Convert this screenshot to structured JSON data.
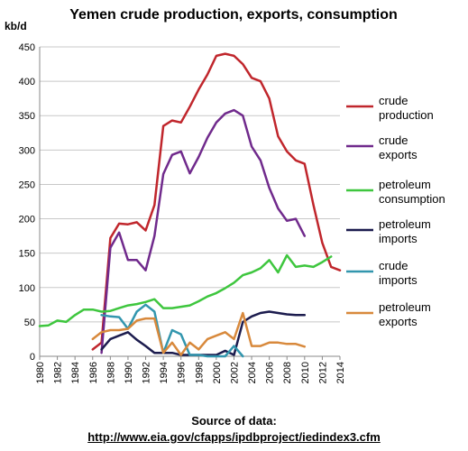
{
  "chart_data": {
    "type": "line",
    "title": "Yemen crude production,  exports, consumption",
    "ylabel": "kb/d",
    "xlabel": "",
    "ylim": [
      0,
      450
    ],
    "y_ticks": [
      0,
      50,
      100,
      150,
      200,
      250,
      300,
      350,
      400,
      450
    ],
    "xlim": [
      1980,
      2014
    ],
    "x_ticks": [
      1980,
      1982,
      1984,
      1986,
      1988,
      1990,
      1992,
      1994,
      1996,
      1998,
      2000,
      2002,
      2004,
      2006,
      2008,
      2010,
      2012,
      2014
    ],
    "grid": "horizontal",
    "legend_position": "right",
    "series": [
      {
        "name": "crude production",
        "color": "#c0262c",
        "x": [
          1986,
          1987,
          1988,
          1989,
          1990,
          1991,
          1992,
          1993,
          1994,
          1995,
          1996,
          1997,
          1998,
          1999,
          2000,
          2001,
          2002,
          2003,
          2004,
          2005,
          2006,
          2007,
          2008,
          2009,
          2010,
          2011,
          2012,
          2013,
          2014
        ],
        "values": [
          10,
          20,
          172,
          193,
          192,
          195,
          183,
          220,
          335,
          343,
          340,
          363,
          388,
          410,
          437,
          440,
          437,
          425,
          405,
          400,
          375,
          320,
          298,
          285,
          280,
          220,
          165,
          130,
          125
        ]
      },
      {
        "name": "crude exports",
        "color": "#702a8c",
        "x": [
          1987,
          1988,
          1989,
          1990,
          1991,
          1992,
          1993,
          1994,
          1995,
          1996,
          1997,
          1998,
          1999,
          2000,
          2001,
          2002,
          2003,
          2004,
          2005,
          2006,
          2007,
          2008,
          2009,
          2010
        ],
        "values": [
          5,
          158,
          180,
          140,
          140,
          125,
          175,
          265,
          293,
          298,
          266,
          290,
          318,
          340,
          353,
          358,
          350,
          305,
          285,
          245,
          215,
          197,
          200,
          175
        ]
      },
      {
        "name": "petroleum consumption",
        "color": "#3ec63e",
        "x": [
          1980,
          1981,
          1982,
          1983,
          1984,
          1985,
          1986,
          1987,
          1988,
          1989,
          1990,
          1991,
          1992,
          1993,
          1994,
          1995,
          1996,
          1997,
          1998,
          1999,
          2000,
          2001,
          2002,
          2003,
          2004,
          2005,
          2006,
          2007,
          2008,
          2009,
          2010,
          2011,
          2012,
          2013
        ],
        "values": [
          44,
          45,
          52,
          50,
          60,
          68,
          68,
          65,
          66,
          70,
          74,
          76,
          79,
          83,
          70,
          70,
          72,
          74,
          80,
          87,
          92,
          99,
          107,
          118,
          122,
          128,
          140,
          122,
          147,
          130,
          132,
          130,
          137,
          145
        ]
      },
      {
        "name": "petroleum imports",
        "color": "#1c1c4e",
        "x": [
          1987,
          1988,
          1989,
          1990,
          1991,
          1992,
          1993,
          1994,
          1995,
          1996,
          1997,
          1998,
          1999,
          2000,
          2001,
          2002,
          2003,
          2004,
          2005,
          2006,
          2007,
          2008,
          2009,
          2010
        ],
        "values": [
          10,
          25,
          30,
          35,
          24,
          15,
          5,
          5,
          5,
          2,
          2,
          2,
          2,
          2,
          8,
          2,
          50,
          58,
          63,
          65,
          63,
          61,
          60,
          60
        ]
      },
      {
        "name": "crude imports",
        "color": "#3296ae",
        "x": [
          1987,
          1988,
          1989,
          1990,
          1991,
          1992,
          1993,
          1994,
          1995,
          1996,
          1997,
          1998,
          1999,
          2000,
          2001,
          2002,
          2003
        ],
        "values": [
          60,
          58,
          57,
          40,
          65,
          75,
          65,
          5,
          38,
          32,
          2,
          2,
          0,
          0,
          0,
          15,
          0
        ]
      },
      {
        "name": "petroleum exports",
        "color": "#d8893c",
        "x": [
          1986,
          1987,
          1988,
          1989,
          1990,
          1991,
          1992,
          1993,
          1994,
          1995,
          1996,
          1997,
          1998,
          1999,
          2000,
          2001,
          2002,
          2003,
          2004,
          2005,
          2006,
          2007,
          2008,
          2009,
          2010
        ],
        "values": [
          25,
          35,
          38,
          38,
          40,
          52,
          55,
          55,
          5,
          20,
          2,
          20,
          10,
          25,
          30,
          35,
          25,
          63,
          15,
          15,
          20,
          20,
          18,
          18,
          14
        ]
      }
    ]
  },
  "source": {
    "label": "Source of data:",
    "url": "http://www.eia.gov/cfapps/ipdbproject/iedindex3.cfm"
  }
}
